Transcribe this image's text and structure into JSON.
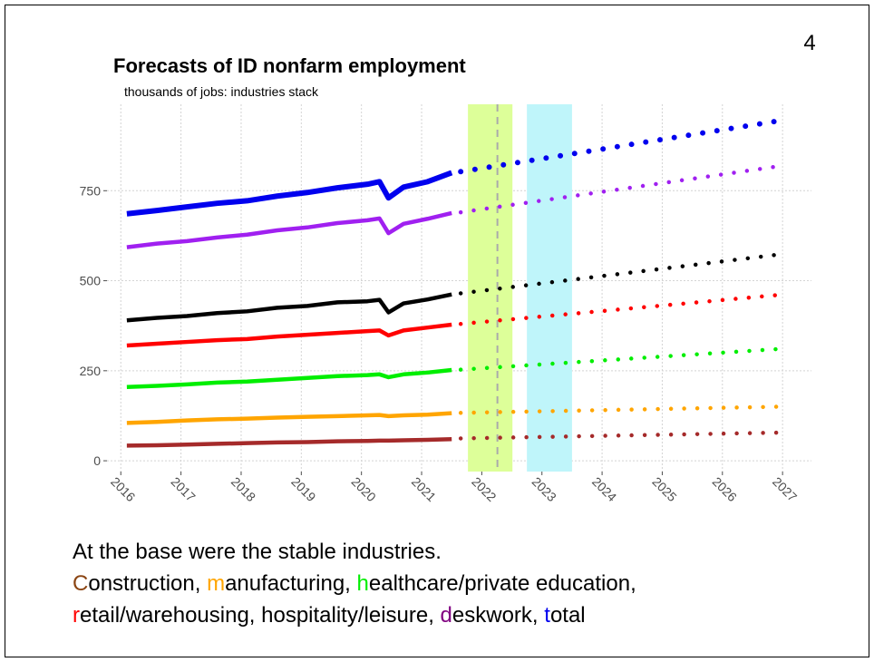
{
  "page_number": "4",
  "chart_data": {
    "type": "stacked-line",
    "title": "Forecasts of ID nonfarm employment",
    "subtitle": "thousands of jobs: industries stack",
    "x": [
      2016.1,
      2016.6,
      2017.1,
      2017.6,
      2018.1,
      2018.6,
      2019.1,
      2019.6,
      2020.1,
      2020.3,
      2020.45,
      2020.7,
      2021.1,
      2021.5
    ],
    "forecast_x": [
      2021.65,
      2026.9
    ],
    "series": [
      {
        "color": "#a52a2a",
        "values": [
          42,
          43,
          45,
          47,
          49,
          51,
          52,
          54,
          55,
          56,
          56,
          57,
          58,
          60
        ],
        "forecast": [
          62,
          78
        ]
      },
      {
        "color": "#ffa500",
        "values": [
          63,
          65,
          67,
          68,
          68,
          69,
          70,
          70,
          71,
          71,
          68,
          69,
          70,
          72
        ],
        "forecast": [
          71,
          72
        ]
      },
      {
        "color": "#00ee00",
        "values": [
          100,
          100,
          100,
          102,
          103,
          105,
          108,
          111,
          112,
          113,
          108,
          114,
          117,
          120
        ],
        "forecast": [
          120,
          160
        ]
      },
      {
        "color": "#ff0000",
        "values": [
          115,
          117,
          118,
          118,
          118,
          120,
          120,
          120,
          122,
          122,
          116,
          122,
          125,
          126
        ],
        "forecast": [
          127,
          150
        ]
      },
      {
        "color": "#000000",
        "values": [
          70,
          72,
          72,
          75,
          77,
          80,
          80,
          85,
          83,
          85,
          64,
          75,
          78,
          84
        ],
        "forecast": [
          85,
          112
        ]
      },
      {
        "color": "#a020f0",
        "values": [
          203,
          206,
          208,
          210,
          213,
          215,
          218,
          220,
          225,
          226,
          220,
          221,
          224,
          226
        ],
        "forecast": [
          225,
          245
        ]
      },
      {
        "color": "#0000ee",
        "values": [
          93,
          92,
          95,
          95,
          94,
          95,
          97,
          98,
          100,
          102,
          98,
          102,
          103,
          112
        ],
        "forecast": [
          113,
          126
        ]
      }
    ],
    "xlim": [
      2015.77,
      2027.48
    ],
    "xticks": [
      2016,
      2017,
      2018,
      2019,
      2020,
      2021,
      2022,
      2023,
      2024,
      2025,
      2026,
      2027
    ],
    "ylim": [
      -30,
      990
    ],
    "yticks": [
      0,
      250,
      500,
      750
    ],
    "grid": true,
    "bands": [
      {
        "xlim": [
          2021.77,
          2022.51
        ],
        "color": "#ddff99"
      },
      {
        "xlim": [
          2022.75,
          2023.5
        ],
        "color": "#bff5fa"
      }
    ],
    "vline": 2022.26
  },
  "caption": [
    [
      {
        "text": "At the base were the stable industries."
      }
    ],
    [
      {
        "text": "C",
        "color": "#8b4513"
      },
      {
        "text": "onstruction, "
      },
      {
        "text": "m",
        "color": "#ffa500"
      },
      {
        "text": "anufacturing, "
      },
      {
        "text": "h",
        "color": "#00ee00"
      },
      {
        "text": "ealthcare/private education,"
      }
    ],
    [
      {
        "text": "r",
        "color": "#ff0000"
      },
      {
        "text": "etail/warehousing, hospitality/leisure, "
      },
      {
        "text": "d",
        "color": "#800080"
      },
      {
        "text": "eskwork, "
      },
      {
        "text": "t",
        "color": "#0000ee"
      },
      {
        "text": "otal"
      }
    ]
  ]
}
